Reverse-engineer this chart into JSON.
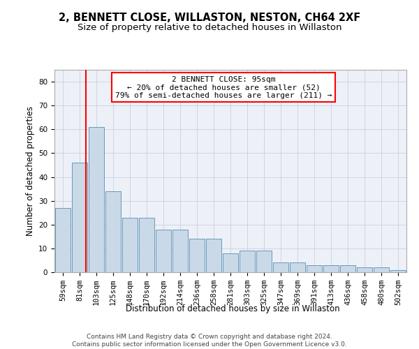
{
  "title1": "2, BENNETT CLOSE, WILLASTON, NESTON, CH64 2XF",
  "title2": "Size of property relative to detached houses in Willaston",
  "xlabel": "Distribution of detached houses by size in Willaston",
  "ylabel": "Number of detached properties",
  "bar_labels": [
    "59sqm",
    "81sqm",
    "103sqm",
    "125sqm",
    "148sqm",
    "170sqm",
    "192sqm",
    "214sqm",
    "236sqm",
    "258sqm",
    "281sqm",
    "303sqm",
    "325sqm",
    "347sqm",
    "369sqm",
    "391sqm",
    "413sqm",
    "436sqm",
    "458sqm",
    "480sqm",
    "502sqm"
  ],
  "bar_values": [
    27,
    46,
    61,
    34,
    23,
    23,
    18,
    18,
    14,
    14,
    8,
    9,
    9,
    4,
    4,
    3,
    3,
    3,
    2,
    2,
    1
  ],
  "bar_color": "#c9d9e8",
  "bar_edge_color": "#6699bb",
  "ylim": [
    0,
    85
  ],
  "yticks": [
    0,
    10,
    20,
    30,
    40,
    50,
    60,
    70,
    80
  ],
  "red_line_x": 1.36,
  "annotation_line1": "2 BENNETT CLOSE: 95sqm",
  "annotation_line2": "← 20% of detached houses are smaller (52)",
  "annotation_line3": "79% of semi-detached houses are larger (211) →",
  "footer1": "Contains HM Land Registry data © Crown copyright and database right 2024.",
  "footer2": "Contains public sector information licensed under the Open Government Licence v3.0.",
  "background_color": "#edf1f7",
  "grid_color": "#c8cfe0",
  "title1_fontsize": 10.5,
  "title2_fontsize": 9.5,
  "axis_label_fontsize": 8.5,
  "tick_fontsize": 7.5,
  "annotation_fontsize": 8,
  "footer_fontsize": 6.5
}
